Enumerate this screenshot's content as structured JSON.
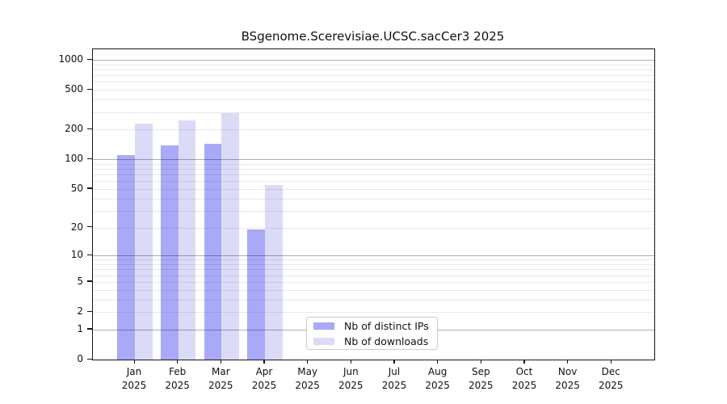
{
  "chart_data": {
    "type": "bar",
    "title": "BSgenome.Scerevisiae.UCSC.sacCer3 2025",
    "yscale": "log1p",
    "ylim": [
      0,
      1276
    ],
    "yticks": [
      0,
      1,
      2,
      5,
      10,
      20,
      50,
      100,
      200,
      500,
      1000
    ],
    "grid": "on",
    "legend_position": "inside-bottom-center",
    "categories": [
      {
        "month": "Jan",
        "year": "2025"
      },
      {
        "month": "Feb",
        "year": "2025"
      },
      {
        "month": "Mar",
        "year": "2025"
      },
      {
        "month": "Apr",
        "year": "2025"
      },
      {
        "month": "May",
        "year": "2025"
      },
      {
        "month": "Jun",
        "year": "2025"
      },
      {
        "month": "Jul",
        "year": "2025"
      },
      {
        "month": "Aug",
        "year": "2025"
      },
      {
        "month": "Sep",
        "year": "2025"
      },
      {
        "month": "Oct",
        "year": "2025"
      },
      {
        "month": "Nov",
        "year": "2025"
      },
      {
        "month": "Dec",
        "year": "2025"
      }
    ],
    "series": [
      {
        "name": "Nb of distinct IPs",
        "key": "distinct-ips",
        "color": "#a9a9f7",
        "values": [
          110,
          138,
          142,
          19,
          null,
          null,
          null,
          null,
          null,
          null,
          null,
          null
        ]
      },
      {
        "name": "Nb of downloads",
        "key": "downloads",
        "color": "#dbdbf8",
        "values": [
          230,
          248,
          290,
          55,
          null,
          null,
          null,
          null,
          null,
          null,
          null,
          null
        ]
      }
    ]
  }
}
